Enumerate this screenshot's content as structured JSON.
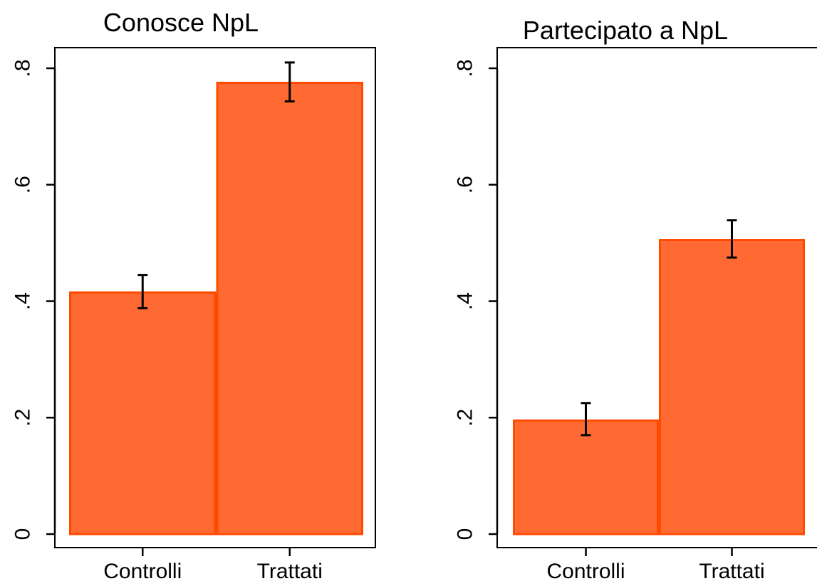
{
  "chart_data": [
    {
      "type": "bar",
      "title": "Conosce NpL",
      "categories": [
        "Controlli",
        "Trattati"
      ],
      "values": [
        0.415,
        0.775
      ],
      "error_bars": [
        {
          "low": 0.388,
          "high": 0.445
        },
        {
          "low": 0.743,
          "high": 0.81
        }
      ],
      "yticks": [
        0,
        0.2,
        0.4,
        0.6,
        0.8
      ],
      "ytick_labels": [
        "0",
        ".2",
        ".4",
        ".6",
        ".8"
      ],
      "ylim": [
        0,
        0.84
      ],
      "xlabel": "",
      "ylabel": "",
      "grid": false,
      "colors": {
        "bar_fill": "#FF6A33",
        "bar_edge": "#FF4A00"
      }
    },
    {
      "type": "bar",
      "title": "Partecipato a NpL",
      "categories": [
        "Controlli",
        "Trattati"
      ],
      "values": [
        0.195,
        0.505
      ],
      "error_bars": [
        {
          "low": 0.17,
          "high": 0.225
        },
        {
          "low": 0.475,
          "high": 0.539
        }
      ],
      "yticks": [
        0,
        0.2,
        0.4,
        0.6,
        0.8
      ],
      "ytick_labels": [
        "0",
        ".2",
        ".4",
        ".6",
        ".8"
      ],
      "ylim": [
        0,
        0.84
      ],
      "xlabel": "",
      "ylabel": "",
      "grid": false,
      "colors": {
        "bar_fill": "#FF6A33",
        "bar_edge": "#FF4A00"
      }
    }
  ]
}
